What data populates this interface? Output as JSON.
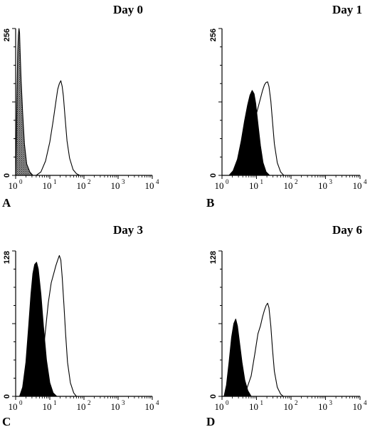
{
  "colors": {
    "ink": "#000000",
    "shaded_fill": "#555555",
    "background": "#ffffff"
  },
  "chart_data": [
    {
      "type": "area",
      "panel": "A",
      "title": "Day 0",
      "xscale": "log",
      "xlim": [
        1,
        10000
      ],
      "ylim": [
        0,
        256
      ],
      "x_tick_labels": [
        {
          "base": "10",
          "exp": "0"
        },
        {
          "base": "10",
          "exp": "1"
        },
        {
          "base": "10",
          "exp": "2"
        },
        {
          "base": "10",
          "exp": "3"
        },
        {
          "base": "10",
          "exp": "4"
        }
      ],
      "y_tick_labels": [
        "0",
        "256"
      ],
      "series": [
        {
          "style": "shaded",
          "points": [
            [
              1.0,
              0
            ],
            [
              1.05,
              60
            ],
            [
              1.1,
              150
            ],
            [
              1.15,
              215
            ],
            [
              1.2,
              245
            ],
            [
              1.25,
              256
            ],
            [
              1.3,
              248
            ],
            [
              1.35,
              215
            ],
            [
              1.45,
              165
            ],
            [
              1.6,
              110
            ],
            [
              1.8,
              55
            ],
            [
              2.1,
              20
            ],
            [
              2.6,
              6
            ],
            [
              3.2,
              0
            ]
          ]
        },
        {
          "style": "outline",
          "points": [
            [
              4,
              0
            ],
            [
              5.5,
              6
            ],
            [
              7.5,
              25
            ],
            [
              10,
              58
            ],
            [
              12.5,
              95
            ],
            [
              15,
              128
            ],
            [
              17,
              150
            ],
            [
              19,
              160
            ],
            [
              21,
              165
            ],
            [
              23,
              155
            ],
            [
              25,
              138
            ],
            [
              28,
              100
            ],
            [
              32,
              60
            ],
            [
              38,
              30
            ],
            [
              48,
              10
            ],
            [
              60,
              3
            ],
            [
              75,
              0
            ]
          ]
        }
      ]
    },
    {
      "type": "area",
      "panel": "B",
      "title": "Day 1",
      "xscale": "log",
      "xlim": [
        1,
        10000
      ],
      "ylim": [
        0,
        256
      ],
      "x_tick_labels": [
        {
          "base": "10",
          "exp": "0"
        },
        {
          "base": "10",
          "exp": "1"
        },
        {
          "base": "10",
          "exp": "2"
        },
        {
          "base": "10",
          "exp": "3"
        },
        {
          "base": "10",
          "exp": "4"
        }
      ],
      "y_tick_labels": [
        "0",
        "256"
      ],
      "series": [
        {
          "style": "filled",
          "points": [
            [
              1.6,
              0
            ],
            [
              2.1,
              8
            ],
            [
              2.8,
              28
            ],
            [
              3.6,
              60
            ],
            [
              4.5,
              95
            ],
            [
              5.5,
              122
            ],
            [
              6.5,
              140
            ],
            [
              7.5,
              148
            ],
            [
              8.5,
              142
            ],
            [
              9.5,
              125
            ],
            [
              11,
              90
            ],
            [
              13,
              52
            ],
            [
              15.5,
              22
            ],
            [
              19,
              6
            ],
            [
              24,
              0
            ]
          ]
        },
        {
          "style": "outline",
          "points": [
            [
              3,
              0
            ],
            [
              4,
              8
            ],
            [
              5.5,
              25
            ],
            [
              7.5,
              62
            ],
            [
              10,
              108
            ],
            [
              12.5,
              130
            ],
            [
              15,
              148
            ],
            [
              17,
              158
            ],
            [
              19,
              162
            ],
            [
              21,
              163
            ],
            [
              23,
              155
            ],
            [
              26,
              130
            ],
            [
              29,
              95
            ],
            [
              33,
              55
            ],
            [
              40,
              22
            ],
            [
              50,
              6
            ],
            [
              62,
              0
            ]
          ]
        }
      ]
    },
    {
      "type": "area",
      "panel": "C",
      "title": "Day 3",
      "xscale": "log",
      "xlim": [
        1,
        10000
      ],
      "ylim": [
        0,
        128
      ],
      "x_tick_labels": [
        {
          "base": "10",
          "exp": "0"
        },
        {
          "base": "10",
          "exp": "1"
        },
        {
          "base": "10",
          "exp": "2"
        },
        {
          "base": "10",
          "exp": "3"
        },
        {
          "base": "10",
          "exp": "4"
        }
      ],
      "y_tick_labels": [
        "0",
        "128"
      ],
      "series": [
        {
          "style": "filled",
          "points": [
            [
              1.3,
              0
            ],
            [
              1.6,
              8
            ],
            [
              2,
              30
            ],
            [
              2.4,
              62
            ],
            [
              2.8,
              90
            ],
            [
              3.2,
              108
            ],
            [
              3.6,
              116
            ],
            [
              4.1,
              118
            ],
            [
              4.6,
              112
            ],
            [
              5.5,
              90
            ],
            [
              6.5,
              62
            ],
            [
              8,
              32
            ],
            [
              10,
              12
            ],
            [
              12.5,
              3
            ],
            [
              16,
              0
            ]
          ]
        },
        {
          "style": "outline",
          "points": [
            [
              2.5,
              0
            ],
            [
              3.5,
              5
            ],
            [
              5,
              20
            ],
            [
              7,
              50
            ],
            [
              9,
              82
            ],
            [
              11,
              100
            ],
            [
              13,
              108
            ],
            [
              15,
              115
            ],
            [
              17,
              120
            ],
            [
              19,
              124
            ],
            [
              21,
              120
            ],
            [
              23,
              105
            ],
            [
              26,
              80
            ],
            [
              29,
              55
            ],
            [
              33,
              30
            ],
            [
              40,
              12
            ],
            [
              50,
              3
            ],
            [
              60,
              0
            ]
          ]
        }
      ]
    },
    {
      "type": "area",
      "panel": "D",
      "title": "Day 6",
      "xscale": "log",
      "xlim": [
        1,
        10000
      ],
      "ylim": [
        0,
        128
      ],
      "x_tick_labels": [
        {
          "base": "10",
          "exp": "0"
        },
        {
          "base": "10",
          "exp": "1"
        },
        {
          "base": "10",
          "exp": "2"
        },
        {
          "base": "10",
          "exp": "3"
        },
        {
          "base": "10",
          "exp": "4"
        }
      ],
      "y_tick_labels": [
        "0",
        "128"
      ],
      "series": [
        {
          "style": "filled",
          "points": [
            [
              1.15,
              0
            ],
            [
              1.35,
              10
            ],
            [
              1.6,
              30
            ],
            [
              1.9,
              52
            ],
            [
              2.2,
              64
            ],
            [
              2.5,
              68
            ],
            [
              2.8,
              62
            ],
            [
              3.2,
              48
            ],
            [
              3.8,
              30
            ],
            [
              4.6,
              14
            ],
            [
              5.6,
              5
            ],
            [
              7,
              0
            ]
          ]
        },
        {
          "style": "outline",
          "points": [
            [
              3.5,
              0
            ],
            [
              5,
              5
            ],
            [
              7,
              18
            ],
            [
              9,
              38
            ],
            [
              11,
              55
            ],
            [
              13,
              62
            ],
            [
              15,
              70
            ],
            [
              17,
              76
            ],
            [
              19,
              80
            ],
            [
              21,
              82
            ],
            [
              23,
              78
            ],
            [
              26,
              62
            ],
            [
              29,
              42
            ],
            [
              33,
              22
            ],
            [
              40,
              8
            ],
            [
              50,
              2
            ],
            [
              60,
              0
            ]
          ]
        }
      ]
    }
  ],
  "panels": [
    {
      "letter": "A",
      "title": "Day 0",
      "ylabel_top": "256",
      "ylabel_bottom": "0"
    },
    {
      "letter": "B",
      "title": "Day 1",
      "ylabel_top": "256",
      "ylabel_bottom": "0"
    },
    {
      "letter": "C",
      "title": "Day 3",
      "ylabel_top": "128",
      "ylabel_bottom": "0"
    },
    {
      "letter": "D",
      "title": "Day 6",
      "ylabel_top": "128",
      "ylabel_bottom": "0"
    }
  ]
}
